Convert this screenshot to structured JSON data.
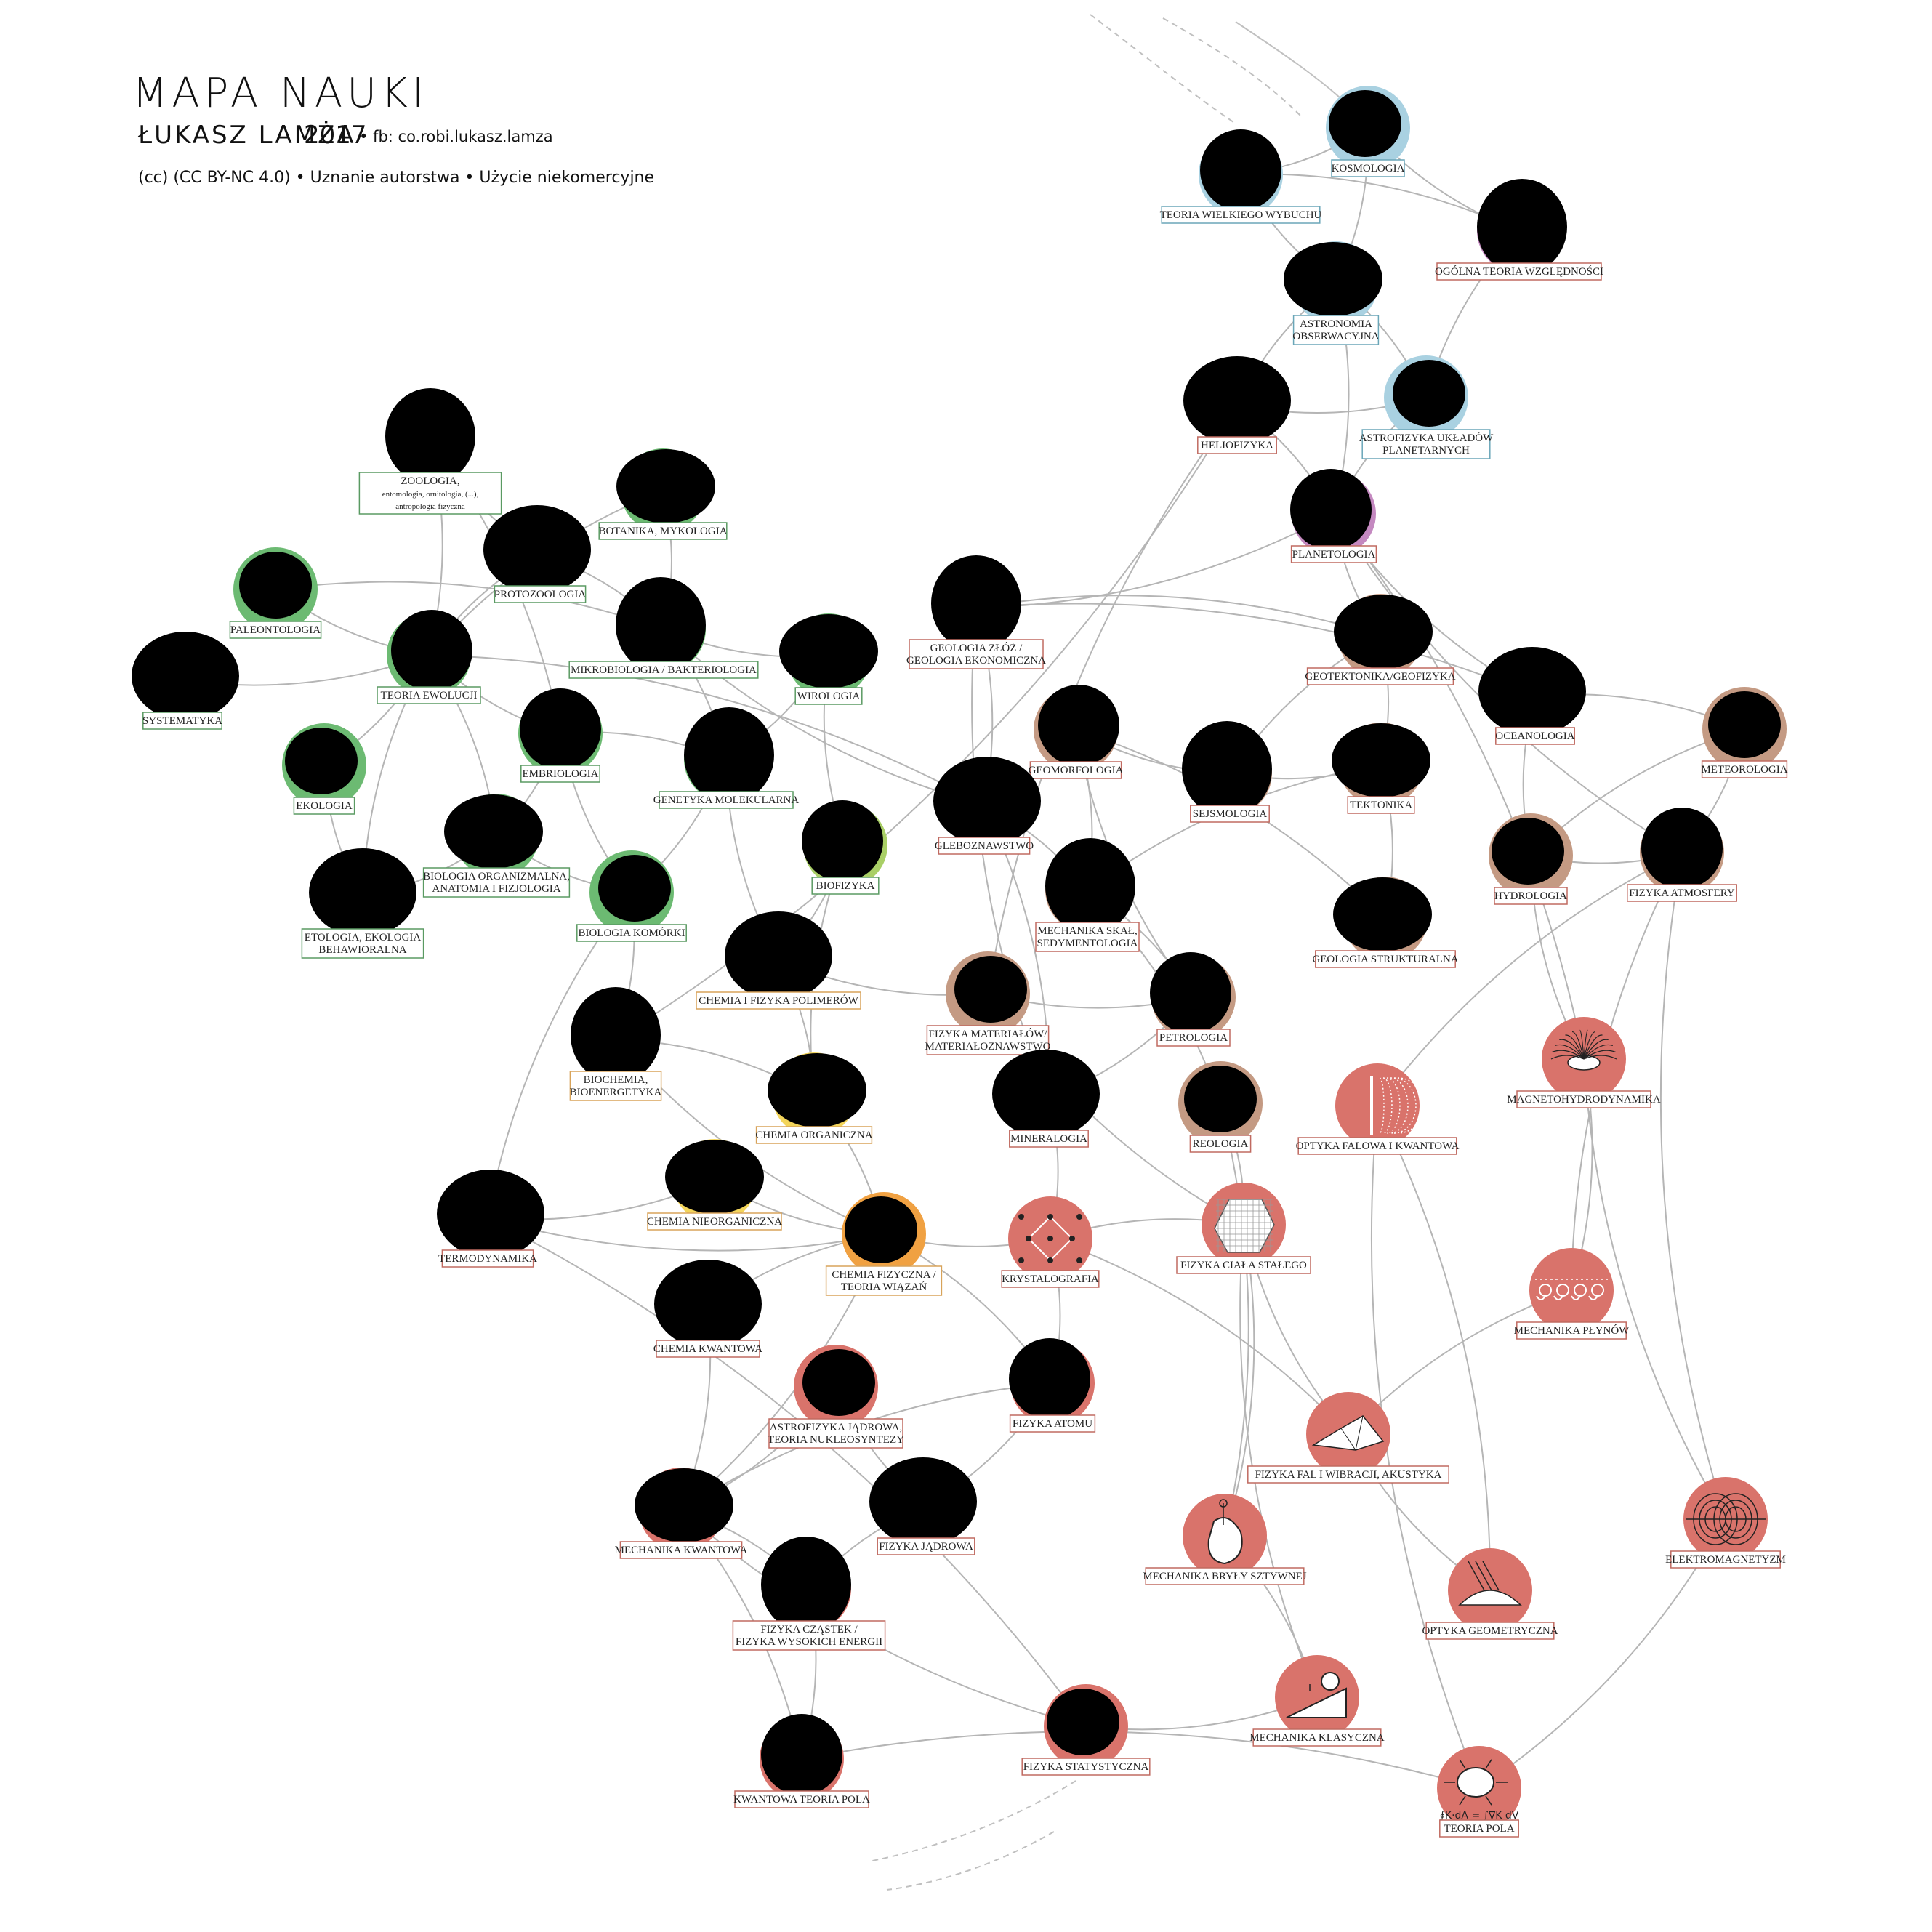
{
  "header": {
    "title": "MAPA NAUKI",
    "author": "ŁUKASZ LAMŻA",
    "year": "2017",
    "fb": "• fb: co.robi.lukasz.lamza",
    "license": "(cc) (CC BY-NC 4.0) • Uznanie autorstwa • Użycie niekomercyjne"
  },
  "colors": {
    "biology": "#6cba72",
    "geo": "#c49a83",
    "physics": "#d9736b",
    "astro_blue": "#a9d1e1",
    "astro_purple": "#c489c0",
    "chem_yellow": "#f3d55b",
    "chem_lime": "#c6e13b",
    "chem_orange": "#f0a142",
    "chem_red": "#e8774a",
    "biophys": "#a9cf66",
    "edge": "#b5b5b5",
    "redaction": "#000000"
  },
  "nodes": [
    {
      "id": "kosmologia",
      "label": "KOSMOLOGIA",
      "color": "astro_blue",
      "redacted": true
    },
    {
      "id": "wielki_wybuch",
      "label": "TEORIA WIELKIEGO WYBUCHU",
      "color": "astro_blue",
      "redacted": true
    },
    {
      "id": "ogolna_wzglednosc",
      "label": "OGÓLNA TEORIA WZGLĘDNOŚCI",
      "color": "astro_purple",
      "redacted": true
    },
    {
      "id": "astronomia",
      "label": "ASTRONOMIA",
      "label2": "OBSERWACYJNA",
      "color": "astro_blue",
      "redacted": true
    },
    {
      "id": "heliofizyka",
      "label": "HELIOFIZYKA",
      "color": "astro_purple",
      "redacted": true
    },
    {
      "id": "astrofizyka_ukladow",
      "label": "ASTROFIZYKA UKŁADÓW",
      "label2": "PLANETARNYCH",
      "color": "astro_blue",
      "redacted": true
    },
    {
      "id": "planetologia",
      "label": "PLANETOLOGIA",
      "color": "astro_purple",
      "redacted": true
    },
    {
      "id": "zoologia",
      "label": "ZOOLOGIA,",
      "label2": "entomologia, ornitologia, (...),",
      "label3": "antropologia fizyczna",
      "color": "biology",
      "redacted": true
    },
    {
      "id": "botanika",
      "label": "BOTANIKA, MYKOLOGIA",
      "color": "biology",
      "redacted": true
    },
    {
      "id": "protozoologia",
      "label": "PROTOZOOLOGIA",
      "color": "biology",
      "redacted": true
    },
    {
      "id": "paleontologia",
      "label": "PALEONTOLOGIA",
      "color": "biology",
      "redacted": true
    },
    {
      "id": "teoria_ewolucji",
      "label": "TEORIA EWOLUCJI",
      "color": "biology",
      "redacted": true
    },
    {
      "id": "mikrobiologia",
      "label": "MIKROBIOLOGIA / BAKTERIOLOGIA",
      "color": "biology",
      "redacted": true
    },
    {
      "id": "wirologia",
      "label": "WIROLOGIA",
      "color": "biology",
      "redacted": true
    },
    {
      "id": "systematyka",
      "label": "SYSTEMATYKA",
      "color": "biology",
      "redacted": true
    },
    {
      "id": "ekologia",
      "label": "EKOLOGIA",
      "color": "biology",
      "redacted": true
    },
    {
      "id": "embriologia",
      "label": "EMBRIOLOGIA",
      "color": "biology",
      "redacted": true
    },
    {
      "id": "genetyka",
      "label": "GENETYKA MOLEKULARNA",
      "color": "biology",
      "redacted": true
    },
    {
      "id": "biologia_org",
      "label": "BIOLOGIA ORGANIZMALNA,",
      "label2": "ANATOMIA I FIZJOLOGIA",
      "color": "biology",
      "redacted": true
    },
    {
      "id": "etologia",
      "label": "ETOLOGIA, EKOLOGIA",
      "label2": "BEHAWIORALNA",
      "color": "biology",
      "redacted": true
    },
    {
      "id": "biologia_komorki",
      "label": "BIOLOGIA KOMÓRKI",
      "color": "biology",
      "redacted": true
    },
    {
      "id": "biofizyka",
      "label": "BIOFIZYKA",
      "color": "biophys",
      "redacted": true
    },
    {
      "id": "geologia_zloz",
      "label": "GEOLOGIA ZŁÓŻ /",
      "label2": "GEOLOGIA EKONOMICZNA",
      "color": "geo",
      "redacted": true
    },
    {
      "id": "geotektonika",
      "label": "GEOTEKTONIKA/GEOFIZYKA",
      "color": "geo",
      "redacted": true
    },
    {
      "id": "oceanologia",
      "label": "OCEANOLOGIA",
      "color": "geo",
      "redacted": true
    },
    {
      "id": "meteorologia",
      "label": "METEOROLOGIA",
      "color": "geo",
      "redacted": true
    },
    {
      "id": "geomorfologia",
      "label": "GEOMORFOLOGIA",
      "color": "geo",
      "redacted": true
    },
    {
      "id": "sejsmologia",
      "label": "SEJSMOLOGIA",
      "color": "geo",
      "redacted": true
    },
    {
      "id": "tektonika",
      "label": "TEKTONIKA",
      "color": "geo",
      "redacted": true
    },
    {
      "id": "gleboznawstwo",
      "label": "GLEBOZNAWSTWO",
      "color": "geo",
      "redacted": true
    },
    {
      "id": "hydrologia",
      "label": "HYDROLOGIA",
      "color": "geo",
      "redacted": true
    },
    {
      "id": "fizyka_atmosfery",
      "label": "FIZYKA ATMOSFERY",
      "color": "geo",
      "redacted": true
    },
    {
      "id": "mechanika_skal",
      "label": "MECHANIKA SKAŁ,",
      "label2": "SEDYMENTOLOGIA",
      "color": "geo",
      "redacted": true
    },
    {
      "id": "geologia_strukt",
      "label": "GEOLOGIA STRUKTURALNA",
      "color": "geo",
      "redacted": true
    },
    {
      "id": "chemia_polimerow",
      "label": "CHEMIA I FIZYKA POLIMERÓW",
      "color": "chem_yellow",
      "redacted": true
    },
    {
      "id": "fizyka_materialow",
      "label": "FIZYKA MATERIAŁÓW/",
      "label2": "MATERIAŁOZNAWSTWO",
      "color": "geo",
      "redacted": true
    },
    {
      "id": "petrologia",
      "label": "PETROLOGIA",
      "color": "geo",
      "redacted": true
    },
    {
      "id": "biochemia",
      "label": "BIOCHEMIA,",
      "label2": "BIOENERGETYKA",
      "color": "chem_lime",
      "redacted": true
    },
    {
      "id": "chemia_organiczna",
      "label": "CHEMIA ORGANICZNA",
      "color": "chem_yellow",
      "redacted": true
    },
    {
      "id": "mineralogia",
      "label": "MINERALOGIA",
      "color": "geo",
      "redacted": true
    },
    {
      "id": "reologia",
      "label": "REOLOGIA",
      "color": "geo",
      "redacted": true
    },
    {
      "id": "optyka_falowa",
      "label": "OPTYKA FALOWA I KWANTOWA",
      "color": "physics",
      "redacted": false,
      "icon": "wave-interference-icon"
    },
    {
      "id": "magnetohydro",
      "label": "MAGNETOHYDRODYNAMIKA",
      "color": "physics",
      "redacted": false,
      "icon": "plasma-burst-icon"
    },
    {
      "id": "chemia_nieorg",
      "label": "CHEMIA NIEORGANICZNA",
      "color": "chem_yellow",
      "redacted": true
    },
    {
      "id": "termodynamika",
      "label": "TERMODYNAMIKA",
      "color": "chem_red",
      "redacted": true
    },
    {
      "id": "chemia_fizyczna",
      "label": "CHEMIA FIZYCZNA /",
      "label2": "TEORIA WIĄZAŃ",
      "color": "chem_orange",
      "redacted": true
    },
    {
      "id": "krystalografia",
      "label": "KRYSTALOGRAFIA",
      "color": "physics",
      "redacted": false,
      "icon": "crystal-lattice-icon"
    },
    {
      "id": "fizyka_ciala",
      "label": "FIZYKA CIAŁA STAŁEGO",
      "color": "physics",
      "redacted": false,
      "icon": "mesh-sphere-icon"
    },
    {
      "id": "mechanika_plynow",
      "label": "MECHANIKA PŁYNÓW",
      "color": "physics",
      "redacted": false,
      "icon": "vortex-flow-icon"
    },
    {
      "id": "chemia_kwantowa",
      "label": "CHEMIA KWANTOWA",
      "color": "chem_red",
      "redacted": true
    },
    {
      "id": "astrofizyka_jadrowa",
      "label": "ASTROFIZYKA JĄDROWA,",
      "label2": "TEORIA NUKLEOSYNTEZY",
      "color": "physics",
      "redacted": true
    },
    {
      "id": "fizyka_atomu",
      "label": "FIZYKA ATOMU",
      "color": "physics",
      "redacted": true
    },
    {
      "id": "fizyka_fal",
      "label": "FIZYKA FAL I WIBRACJI, AKUSTYKA",
      "color": "physics",
      "redacted": false,
      "icon": "vibrating-membrane-icon"
    },
    {
      "id": "mechanika_kwantowa",
      "label": "MECHANIKA KWANTOWA",
      "color": "physics",
      "redacted": true
    },
    {
      "id": "fizyka_jadrowa",
      "label": "FIZYKA JĄDROWA",
      "color": "physics",
      "redacted": true
    },
    {
      "id": "elektromagnetyzm",
      "label": "ELEKTROMAGNETYZM",
      "color": "physics",
      "redacted": false,
      "icon": "magnetic-field-icon"
    },
    {
      "id": "mechanika_bryly",
      "label": "MECHANIKA BRYŁY SZTYWNEJ",
      "color": "physics",
      "redacted": false,
      "icon": "rigid-body-icon"
    },
    {
      "id": "fizyka_czastek",
      "label": "FIZYKA CZĄSTEK /",
      "label2": "FIZYKA WYSOKICH ENERGII",
      "color": "physics",
      "redacted": true
    },
    {
      "id": "optyka_geom",
      "label": "OPTYKA GEOMETRYCZNA",
      "color": "physics",
      "redacted": false,
      "icon": "lens-rays-icon"
    },
    {
      "id": "mechanika_klasyczna",
      "label": "MECHANIKA KLASYCZNA",
      "color": "physics",
      "redacted": false,
      "icon": "inclined-plane-icon"
    },
    {
      "id": "fizyka_statystyczna",
      "label": "FIZYKA STATYSTYCZNA",
      "color": "physics",
      "redacted": true
    },
    {
      "id": "kwantowa_teoria_pola",
      "label": "KWANTOWA TEORIA POLA",
      "color": "physics",
      "redacted": true
    },
    {
      "id": "teoria_pola",
      "label": "TEORIA POLA",
      "color": "physics",
      "redacted": false,
      "icon": "gauss-law-icon",
      "formula": "∮K·dA = ∫∇K dV"
    }
  ],
  "edges": [
    [
      "kosmologia",
      "wielki_wybuch"
    ],
    [
      "kosmologia",
      "ogolna_wzglednosc"
    ],
    [
      "wielki_wybuch",
      "ogolna_wzglednosc"
    ],
    [
      "wielki_wybuch",
      "astronomia"
    ],
    [
      "kosmologia",
      "astronomia"
    ],
    [
      "astronomia",
      "heliofizyka"
    ],
    [
      "astronomia",
      "astrofizyka_ukladow"
    ],
    [
      "ogolna_wzglednosc",
      "astrofizyka_ukladow"
    ],
    [
      "astronomia",
      "planetologia"
    ],
    [
      "heliofizyka",
      "astrofizyka_ukladow"
    ],
    [
      "heliofizyka",
      "planetologia"
    ],
    [
      "astrofizyka_ukladow",
      "planetologia"
    ],
    [
      "zoologia",
      "teoria_ewolucji"
    ],
    [
      "zoologia",
      "protozoologia"
    ],
    [
      "zoologia",
      "embriologia"
    ],
    [
      "botanika",
      "teoria_ewolucji"
    ],
    [
      "botanika",
      "mikrobiologia"
    ],
    [
      "protozoologia",
      "teoria_ewolucji"
    ],
    [
      "protozoologia",
      "mikrobiologia"
    ],
    [
      "paleontologia",
      "teoria_ewolucji"
    ],
    [
      "paleontologia",
      "mikrobiologia"
    ],
    [
      "systematyka",
      "teoria_ewolucji"
    ],
    [
      "teoria_ewolucji",
      "ekologia"
    ],
    [
      "teoria_ewolucji",
      "embriologia"
    ],
    [
      "teoria_ewolucji",
      "biologia_org"
    ],
    [
      "teoria_ewolucji",
      "etologia"
    ],
    [
      "teoria_ewolucji",
      "gleboznawstwo"
    ],
    [
      "mikrobiologia",
      "wirologia"
    ],
    [
      "mikrobiologia",
      "genetyka"
    ],
    [
      "mikrobiologia",
      "gleboznawstwo"
    ],
    [
      "wirologia",
      "genetyka"
    ],
    [
      "wirologia",
      "biofizyka"
    ],
    [
      "embriologia",
      "biologia_org"
    ],
    [
      "embriologia",
      "biologia_komorki"
    ],
    [
      "embriologia",
      "genetyka"
    ],
    [
      "ekologia",
      "etologia"
    ],
    [
      "biologia_org",
      "etologia"
    ],
    [
      "biologia_org",
      "biologia_komorki"
    ],
    [
      "genetyka",
      "biologia_komorki"
    ],
    [
      "genetyka",
      "chemia_polimerow"
    ],
    [
      "biologia_komorki",
      "biochemia"
    ],
    [
      "biologia_komorki",
      "termodynamika"
    ],
    [
      "biofizyka",
      "chemia_polimerow"
    ],
    [
      "biofizyka",
      "chemia_organiczna"
    ],
    [
      "chemia_polimerow",
      "chemia_organiczna"
    ],
    [
      "chemia_polimerow",
      "fizyka_materialow"
    ],
    [
      "biochemia",
      "chemia_organiczna"
    ],
    [
      "biochemia",
      "chemia_fizyczna"
    ],
    [
      "chemia_organiczna",
      "chemia_fizyczna"
    ],
    [
      "chemia_nieorg",
      "chemia_fizyczna"
    ],
    [
      "chemia_nieorg",
      "termodynamika"
    ],
    [
      "termodynamika",
      "chemia_fizyczna"
    ],
    [
      "termodynamika",
      "fizyka_statystyczna"
    ],
    [
      "chemia_fizyczna",
      "chemia_kwantowa"
    ],
    [
      "chemia_fizyczna",
      "fizyka_atomu"
    ],
    [
      "chemia_fizyczna",
      "krystalografia"
    ],
    [
      "chemia_kwantowa",
      "mechanika_kwantowa"
    ],
    [
      "astrofizyka_jadrowa",
      "fizyka_jadrowa"
    ],
    [
      "astrofizyka_jadrowa",
      "mechanika_kwantowa"
    ],
    [
      "fizyka_atomu",
      "mechanika_kwantowa"
    ],
    [
      "fizyka_atomu",
      "fizyka_jadrowa"
    ],
    [
      "fizyka_atomu",
      "krystalografia"
    ],
    [
      "mechanika_kwantowa",
      "fizyka_czastek"
    ],
    [
      "mechanika_kwantowa",
      "fizyka_statystyczna"
    ],
    [
      "mechanika_kwantowa",
      "kwantowa_teoria_pola"
    ],
    [
      "fizyka_jadrowa",
      "fizyka_czastek"
    ],
    [
      "fizyka_czastek",
      "kwantowa_teoria_pola"
    ],
    [
      "fizyka_statystyczna",
      "mechanika_klasyczna"
    ],
    [
      "kwantowa_teoria_pola",
      "teoria_pola"
    ],
    [
      "teoria_pola",
      "elektromagnetyzm"
    ],
    [
      "teoria_pola",
      "optyka_falowa"
    ],
    [
      "optyka_geom",
      "optyka_falowa"
    ],
    [
      "optyka_geom",
      "fizyka_fal"
    ],
    [
      "mechanika_klasyczna",
      "mechanika_bryly"
    ],
    [
      "mechanika_klasyczna",
      "fizyka_ciala"
    ],
    [
      "mechanika_bryly",
      "fizyka_ciala"
    ],
    [
      "fizyka_fal",
      "mechanika_plynow"
    ],
    [
      "fizyka_fal",
      "krystalografia"
    ],
    [
      "fizyka_fal",
      "fizyka_ciala"
    ],
    [
      "mechanika_plynow",
      "magnetohydro"
    ],
    [
      "mechanika_plynow",
      "fizyka_atmosfery"
    ],
    [
      "magnetohydro",
      "elektromagnetyzm"
    ],
    [
      "magnetohydro",
      "hydrologia"
    ],
    [
      "magnetohydro",
      "planetologia"
    ],
    [
      "optyka_falowa",
      "fizyka_atmosfery"
    ],
    [
      "krystalografia",
      "mineralogia"
    ],
    [
      "krystalografia",
      "fizyka_ciala"
    ],
    [
      "fizyka_ciala",
      "reologia"
    ],
    [
      "fizyka_ciala",
      "fizyka_materialow"
    ],
    [
      "mineralogia",
      "petrologia"
    ],
    [
      "mineralogia",
      "geologia_zloz"
    ],
    [
      "reologia",
      "mechanika_skal"
    ],
    [
      "reologia",
      "mechanika_bryly"
    ],
    [
      "petrologia",
      "mechanika_skal"
    ],
    [
      "petrologia",
      "geomorfologia"
    ],
    [
      "mechanika_skal",
      "geomorfologia"
    ],
    [
      "mechanika_skal",
      "tektonika"
    ],
    [
      "mechanika_skal",
      "gleboznawstwo"
    ],
    [
      "geomorfologia",
      "gleboznawstwo"
    ],
    [
      "geomorfologia",
      "sejsmologia"
    ],
    [
      "geomorfologia",
      "geologia_strukt"
    ],
    [
      "sejsmologia",
      "tektonika"
    ],
    [
      "sejsmologia",
      "geotektonika"
    ],
    [
      "tektonika",
      "geotektonika"
    ],
    [
      "tektonika",
      "geologia_strukt"
    ],
    [
      "geotektonika",
      "geologia_zloz"
    ],
    [
      "geotektonika",
      "planetologia"
    ],
    [
      "oceanologia",
      "hydrologia"
    ],
    [
      "oceanologia",
      "meteorologia"
    ],
    [
      "oceanologia",
      "geologia_zloz"
    ],
    [
      "meteorologia",
      "fizyka_atmosfery"
    ],
    [
      "hydrologia",
      "fizyka_atmosfery"
    ],
    [
      "hydrologia",
      "meteorologia"
    ],
    [
      "planetologia",
      "fizyka_atmosfery"
    ],
    [
      "planetologia",
      "geologia_zloz"
    ],
    [
      "heliofizyka",
      "fizyka_materialow"
    ],
    [
      "heliofizyka",
      "biochemia"
    ],
    [
      "fizyka_materialow",
      "petrologia"
    ],
    [
      "geologia_zloz",
      "gleboznawstwo"
    ],
    [
      "planetologia",
      "oceanologia"
    ],
    [
      "gleboznawstwo",
      "mineralogia"
    ],
    [
      "fizyka_atmosfery",
      "elektromagnetyzm"
    ],
    [
      "chemia_fizyczna",
      "mechanika_kwantowa"
    ]
  ]
}
